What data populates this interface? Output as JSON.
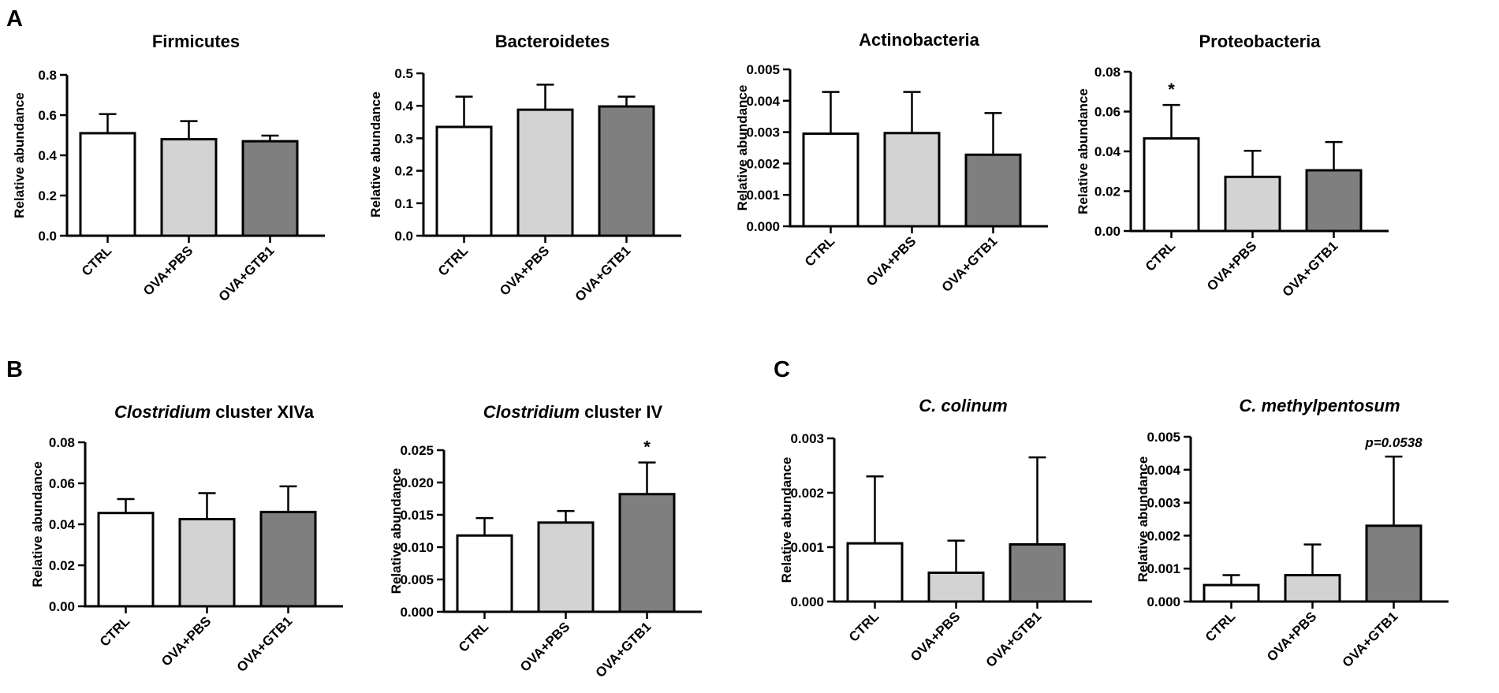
{
  "figure": {
    "panel_labels": [
      "A",
      "B",
      "C"
    ],
    "colors": {
      "CTRL": "#ffffff",
      "OVA+PBS": "#d3d3d3",
      "OVA+GTB1": "#7f7f7f",
      "stroke": "#000000"
    }
  },
  "chart_data": [
    {
      "type": "bar",
      "panel": "A",
      "title": "Firmicutes",
      "title_italic": "",
      "title_rest": "Firmicutes",
      "ylabel": "Relative abundance",
      "categories": [
        "CTRL",
        "OVA+PBS",
        "OVA+GTB1"
      ],
      "values": [
        0.51,
        0.48,
        0.47
      ],
      "errors": [
        0.095,
        0.09,
        0.028
      ],
      "ylim": [
        0,
        0.8
      ],
      "yticks": [
        "0.0",
        "0.2",
        "0.4",
        "0.6",
        "0.8"
      ],
      "annotations": []
    },
    {
      "type": "bar",
      "panel": "A",
      "title": "Bacteroidetes",
      "title_italic": "",
      "title_rest": "Bacteroidetes",
      "ylabel": "Relative abundance",
      "categories": [
        "CTRL",
        "OVA+PBS",
        "OVA+GTB1"
      ],
      "values": [
        0.335,
        0.388,
        0.398
      ],
      "errors": [
        0.093,
        0.077,
        0.03
      ],
      "ylim": [
        0,
        0.5
      ],
      "yticks": [
        "0.0",
        "0.1",
        "0.2",
        "0.3",
        "0.4",
        "0.5"
      ],
      "annotations": []
    },
    {
      "type": "bar",
      "panel": "A",
      "title": "Actinobacteria",
      "title_italic": "",
      "title_rest": "Actinobacteria",
      "ylabel": "Relative abundance",
      "categories": [
        "CTRL",
        "OVA+PBS",
        "OVA+GTB1"
      ],
      "values": [
        0.00295,
        0.00297,
        0.00228
      ],
      "errors": [
        0.00133,
        0.00131,
        0.00133
      ],
      "ylim": [
        0,
        0.005
      ],
      "yticks": [
        "0.000",
        "0.001",
        "0.002",
        "0.003",
        "0.004",
        "0.005"
      ],
      "annotations": []
    },
    {
      "type": "bar",
      "panel": "A",
      "title": "Proteobacteria",
      "title_italic": "",
      "title_rest": "Proteobacteria",
      "ylabel": "Relative abundance",
      "categories": [
        "CTRL",
        "OVA+PBS",
        "OVA+GTB1"
      ],
      "values": [
        0.0465,
        0.0272,
        0.0305
      ],
      "errors": [
        0.0168,
        0.0131,
        0.0142
      ],
      "ylim": [
        0,
        0.08
      ],
      "yticks": [
        "0.00",
        "0.02",
        "0.04",
        "0.06",
        "0.08"
      ],
      "annotations": [
        {
          "bar": 0,
          "text": "*",
          "italic": false
        }
      ]
    },
    {
      "type": "bar",
      "panel": "B",
      "title": "Clostridium cluster XIVa",
      "title_italic": "Clostridium",
      "title_rest": " cluster XIVa",
      "ylabel": "Relative abundance",
      "categories": [
        "CTRL",
        "OVA+PBS",
        "OVA+GTB1"
      ],
      "values": [
        0.0455,
        0.0425,
        0.046
      ],
      "errors": [
        0.0068,
        0.0127,
        0.0125
      ],
      "ylim": [
        0,
        0.08
      ],
      "yticks": [
        "0.00",
        "0.02",
        "0.04",
        "0.06",
        "0.08"
      ],
      "annotations": []
    },
    {
      "type": "bar",
      "panel": "B",
      "title": "Clostridium cluster IV",
      "title_italic": "Clostridium",
      "title_rest": " cluster IV",
      "ylabel": "Relative abundance",
      "categories": [
        "CTRL",
        "OVA+PBS",
        "OVA+GTB1"
      ],
      "values": [
        0.0118,
        0.0138,
        0.0182
      ],
      "errors": [
        0.0027,
        0.0018,
        0.0049
      ],
      "ylim": [
        0,
        0.025
      ],
      "yticks": [
        "0.000",
        "0.005",
        "0.010",
        "0.015",
        "0.020",
        "0.025"
      ],
      "annotations": [
        {
          "bar": 2,
          "text": "*",
          "italic": false
        }
      ]
    },
    {
      "type": "bar",
      "panel": "C",
      "title": "C. colinum",
      "title_italic": "C. colinum",
      "title_rest": "",
      "ylabel": "Relative abundance",
      "categories": [
        "CTRL",
        "OVA+PBS",
        "OVA+GTB1"
      ],
      "values": [
        0.00107,
        0.00053,
        0.00105
      ],
      "errors": [
        0.00123,
        0.00059,
        0.0016
      ],
      "ylim": [
        0,
        0.003
      ],
      "yticks": [
        "0.000",
        "0.001",
        "0.002",
        "0.003"
      ],
      "annotations": []
    },
    {
      "type": "bar",
      "panel": "C",
      "title": "C. methylpentosum",
      "title_italic": "C. methylpentosum",
      "title_rest": "",
      "ylabel": "Relative abundance",
      "categories": [
        "CTRL",
        "OVA+PBS",
        "OVA+GTB1"
      ],
      "values": [
        0.0005,
        0.0008,
        0.0023
      ],
      "errors": [
        0.0003,
        0.00093,
        0.0021
      ],
      "ylim": [
        0,
        0.005
      ],
      "yticks": [
        "0.000",
        "0.001",
        "0.002",
        "0.003",
        "0.004",
        "0.005"
      ],
      "annotations": [
        {
          "bar": 2,
          "text": "p=0.0538",
          "italic": true
        }
      ]
    }
  ]
}
